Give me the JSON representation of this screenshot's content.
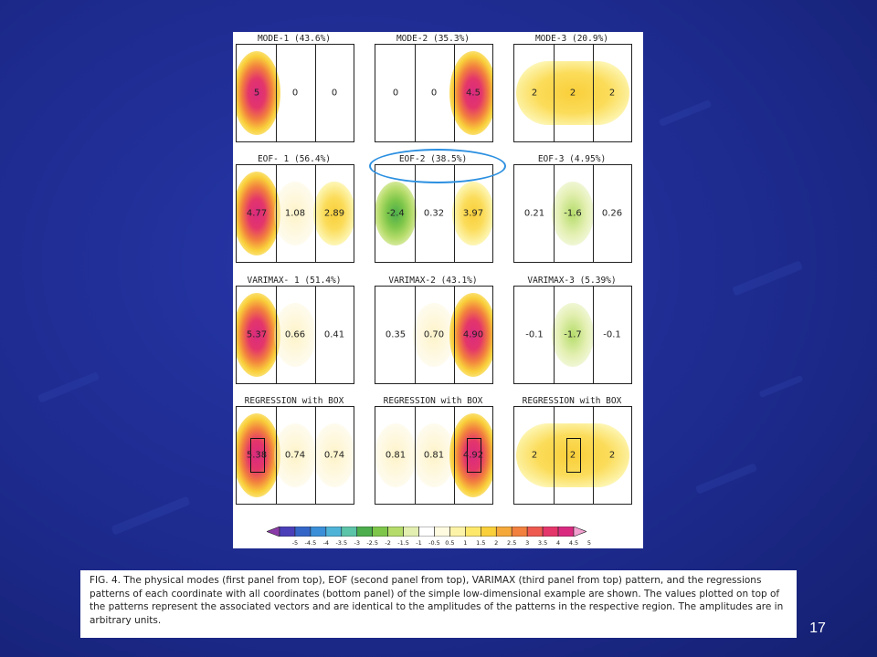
{
  "figure": {
    "rows": [
      {
        "panels": [
          {
            "title": "MODE-1 (43.6%)",
            "values": [
              "5",
              "0",
              "0"
            ],
            "box": false
          },
          {
            "title": "MODE-2 (35.3%)",
            "values": [
              "0",
              "0",
              "4.5"
            ],
            "box": false
          },
          {
            "title": "MODE-3 (20.9%)",
            "values": [
              "2",
              "2",
              "2"
            ],
            "box": false
          }
        ]
      },
      {
        "panels": [
          {
            "title": "EOF- 1 (56.4%)",
            "values": [
              "4.77",
              "1.08",
              "2.89"
            ],
            "box": false
          },
          {
            "title": "EOF-2 (38.5%)",
            "values": [
              "-2.4",
              "0.32",
              "3.97"
            ],
            "box": false
          },
          {
            "title": "EOF-3 (4.95%)",
            "values": [
              "0.21",
              "-1.6",
              "0.26"
            ],
            "box": false
          }
        ]
      },
      {
        "panels": [
          {
            "title": "VARIMAX- 1 (51.4%)",
            "values": [
              "5.37",
              "0.66",
              "0.41"
            ],
            "box": false
          },
          {
            "title": "VARIMAX-2 (43.1%)",
            "values": [
              "0.35",
              "0.70",
              "4.90"
            ],
            "box": false
          },
          {
            "title": "VARIMAX-3 (5.39%)",
            "values": [
              "-0.1",
              "-1.7",
              "-0.1"
            ],
            "box": false
          }
        ]
      },
      {
        "panels": [
          {
            "title": "REGRESSION with BOX",
            "values": [
              "5.38",
              "0.74",
              "0.74"
            ],
            "box": true,
            "box_column": 0
          },
          {
            "title": "REGRESSION with BOX",
            "values": [
              "0.81",
              "0.81",
              "4.92"
            ],
            "box": true,
            "box_column": 2
          },
          {
            "title": "REGRESSION with BOX",
            "values": [
              "2",
              "2",
              "2"
            ],
            "box": true,
            "box_column": 1
          }
        ]
      }
    ],
    "highlighted_panel": "EOF-2 (38.5%)",
    "highlight_color": "#2b8fe0",
    "colorbar": {
      "labels": [
        "-5",
        "-4.5",
        "-4",
        "-3.5",
        "-3",
        "-2.5",
        "-2",
        "-1.5",
        "-1",
        "-0.5",
        "0.5",
        "1",
        "1.5",
        "2",
        "2.5",
        "3",
        "3.5",
        "4",
        "4.5",
        "5"
      ],
      "colors": [
        "#8a3aa8",
        "#4a3fb8",
        "#3466c8",
        "#3a8fd8",
        "#4fb3d8",
        "#5cc4a8",
        "#4cae4c",
        "#7dc64a",
        "#b5dc6a",
        "#e2efb0",
        "#ffffff",
        "#fffbe0",
        "#fdf3a8",
        "#fde86a",
        "#f9cf3a",
        "#f5a93a",
        "#f2803e",
        "#ee5a50",
        "#e4366a",
        "#d92a80",
        "#f2a0d0"
      ]
    }
  },
  "caption": "FIG. 4. The physical modes (first panel from top), EOF (second panel from top), VARIMAX (third panel from top) pattern, and the regressions patterns of each coordinate with all coordinates (bottom panel) of the simple low-dimensional example are shown. The values plotted on top of the patterns represent the associated vectors and are identical to the amplitudes of the patterns in the respective region. The amplitudes are in arbitrary units.",
  "slide_number": "17"
}
